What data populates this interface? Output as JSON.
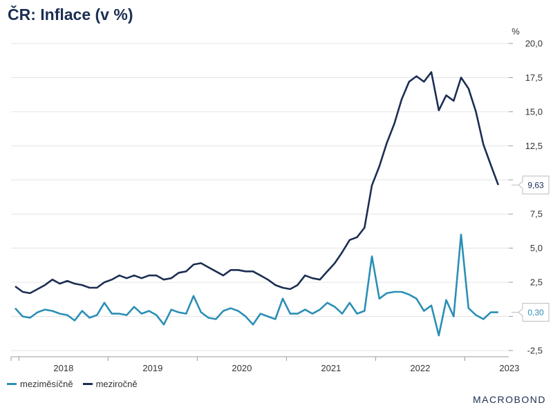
{
  "title": "ČR: Inflace (v %)",
  "brand": "MACROBOND",
  "chart_data": {
    "type": "line",
    "unit_label": "%",
    "ylim": [
      -2.5,
      20.0
    ],
    "y_ticks": [
      "20,0",
      "17,5",
      "15,0",
      "12,5",
      "10,0",
      "7,5",
      "5,0",
      "2,5",
      "0,0",
      "-2,5"
    ],
    "y_tick_values": [
      20,
      17.5,
      15,
      12.5,
      10,
      7.5,
      5,
      2.5,
      0,
      -2.5
    ],
    "x_start": "2017-12",
    "x_ticks": [
      "2018",
      "2019",
      "2020",
      "2021",
      "2022",
      "2023"
    ],
    "grid": true,
    "legend": "bottom-left",
    "series": [
      {
        "name": "meziměsíčně",
        "color": "#2a8fb5",
        "end_label": "0,30",
        "values": [
          0.6,
          0.0,
          -0.1,
          0.3,
          0.5,
          0.4,
          0.2,
          0.1,
          -0.3,
          0.4,
          -0.1,
          0.1,
          1.0,
          0.2,
          0.2,
          0.1,
          0.7,
          0.2,
          0.4,
          0.1,
          -0.6,
          0.5,
          0.3,
          0.2,
          1.5,
          0.3,
          -0.1,
          -0.2,
          0.4,
          0.6,
          0.4,
          0.0,
          -0.6,
          0.2,
          0.0,
          -0.2,
          1.3,
          0.2,
          0.2,
          0.5,
          0.2,
          0.5,
          1.0,
          0.7,
          0.2,
          1.0,
          0.2,
          0.4,
          4.4,
          1.3,
          1.7,
          1.8,
          1.8,
          1.6,
          1.3,
          0.4,
          0.8,
          -1.4,
          1.2,
          0.0,
          6.0,
          0.6,
          0.1,
          -0.2,
          0.3,
          0.3
        ]
      },
      {
        "name": "meziročně",
        "color": "#1b2e52",
        "end_label": "9,63",
        "values": [
          2.2,
          1.8,
          1.7,
          2.0,
          2.3,
          2.7,
          2.4,
          2.6,
          2.4,
          2.3,
          2.1,
          2.1,
          2.5,
          2.7,
          3.0,
          2.8,
          3.0,
          2.8,
          3.0,
          3.0,
          2.7,
          2.8,
          3.2,
          3.3,
          3.8,
          3.9,
          3.6,
          3.3,
          3.0,
          3.4,
          3.4,
          3.3,
          3.3,
          3.0,
          2.7,
          2.3,
          2.1,
          2.0,
          2.3,
          3.0,
          2.8,
          2.7,
          3.3,
          3.9,
          4.7,
          5.6,
          5.8,
          6.5,
          9.6,
          11.0,
          12.7,
          14.1,
          15.9,
          17.2,
          17.6,
          17.2,
          17.9,
          15.1,
          16.2,
          15.8,
          17.5,
          16.7,
          15.0,
          12.6,
          11.1,
          9.63
        ]
      }
    ]
  }
}
